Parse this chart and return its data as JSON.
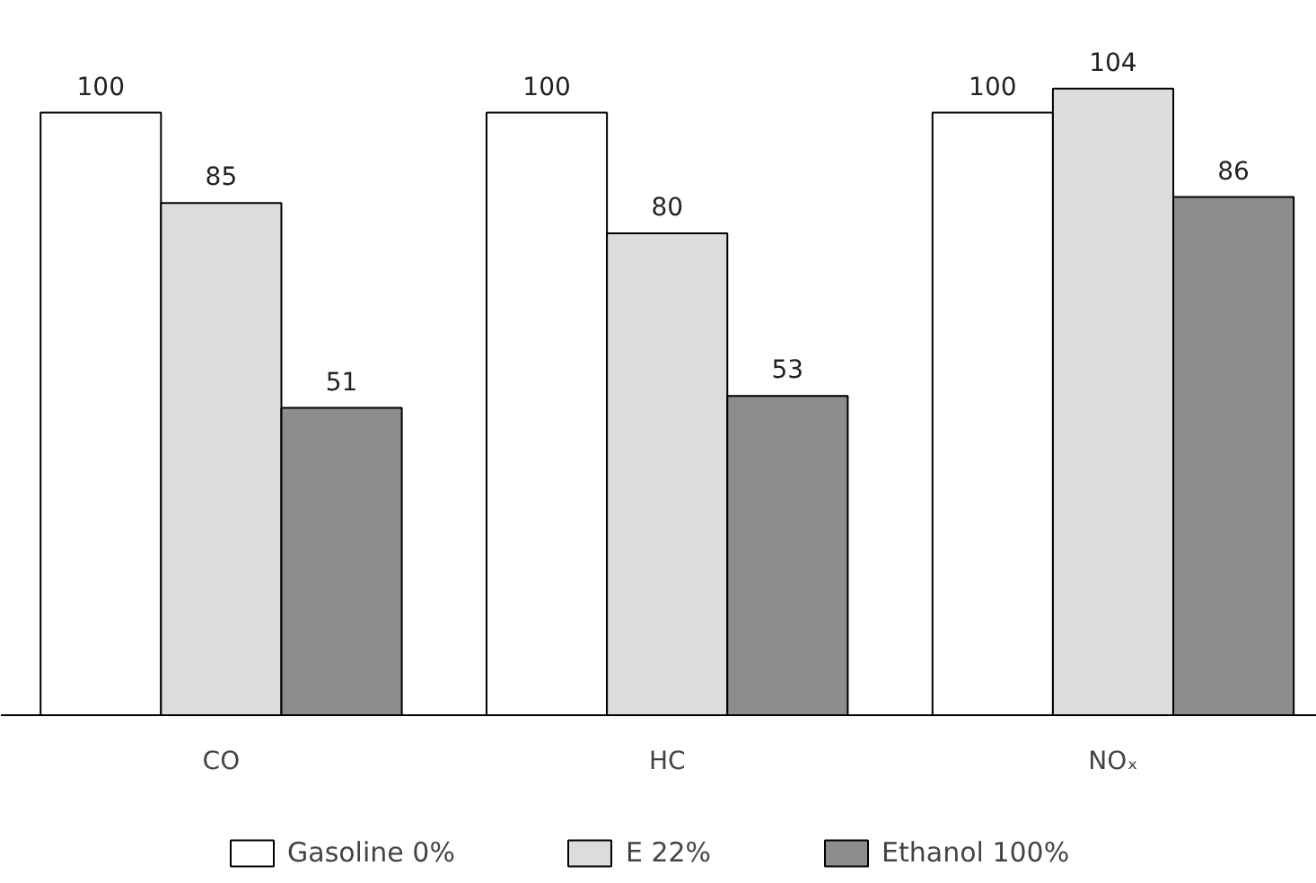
{
  "chart_data": {
    "type": "bar",
    "categories": [
      "CO",
      "HC",
      "NOₓ"
    ],
    "series": [
      {
        "name": "Gasoline 0%",
        "color": "#ffffff",
        "values": [
          100,
          100,
          100
        ]
      },
      {
        "name": "E 22%",
        "color": "#dcdcdc",
        "values": [
          85,
          80,
          104
        ]
      },
      {
        "name": "Ethanol 100%",
        "color": "#8d8d90",
        "values": [
          51,
          53,
          86
        ]
      }
    ],
    "data_labels": true,
    "legend": "bottom"
  }
}
